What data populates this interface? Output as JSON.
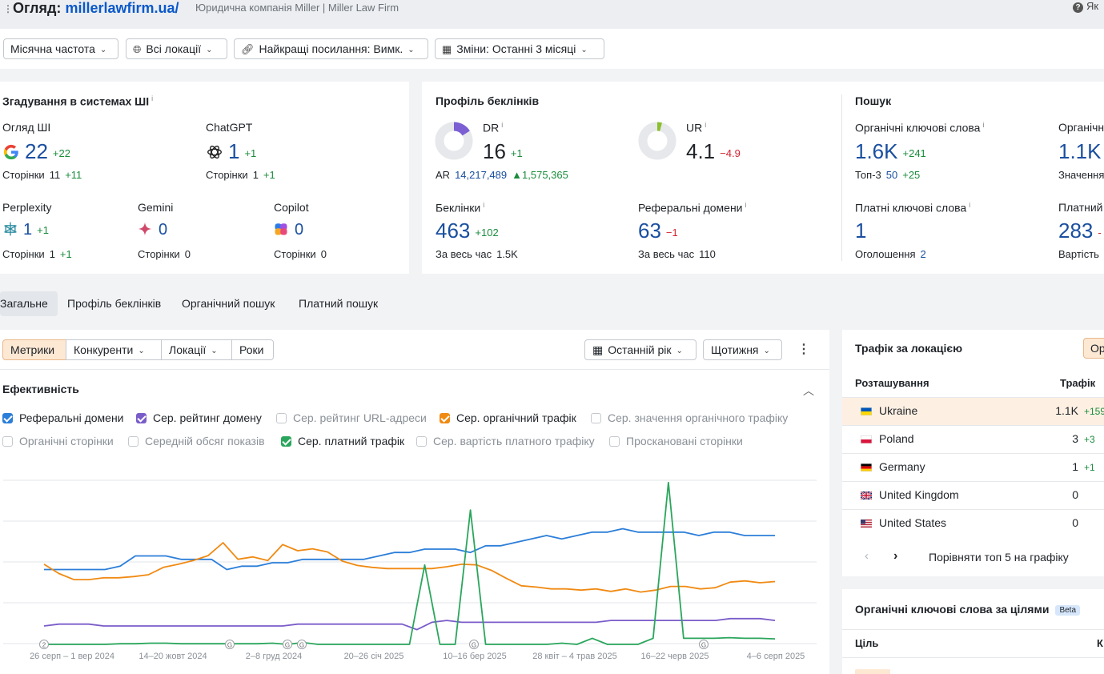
{
  "header": {
    "title_prefix": "Огляд:",
    "domain": "millerlawfirm.ua/",
    "subtitle": "Юридична компанія Miller | Miller Law Firm",
    "help_label": "Як"
  },
  "filters": {
    "frequency": "Місячна частота",
    "locations": "Всі локації",
    "best_links": "Найкращі посилання: Вимк.",
    "changes": "Зміни: Останні 3 місяці"
  },
  "ai_card": {
    "title": "Згадування в системах ШІ",
    "info": "i",
    "ai_overview": {
      "label": "Огляд ШІ",
      "value": "22",
      "delta": "+22",
      "pages_label": "Сторінки",
      "pages": "11",
      "pages_delta": "+11"
    },
    "chatgpt": {
      "label": "ChatGPT",
      "value": "1",
      "delta": "+1",
      "pages_label": "Сторінки",
      "pages": "1",
      "pages_delta": "+1"
    },
    "perplexity": {
      "label": "Perplexity",
      "value": "1",
      "delta": "+1",
      "pages_label": "Сторінки",
      "pages": "1",
      "pages_delta": "+1"
    },
    "gemini": {
      "label": "Gemini",
      "value": "0",
      "pages_label": "Сторінки",
      "pages": "0"
    },
    "copilot": {
      "label": "Copilot",
      "value": "0",
      "pages_label": "Сторінки",
      "pages": "0"
    }
  },
  "backlink_card": {
    "title": "Профіль беклінків",
    "dr": {
      "label": "DR",
      "value": "16",
      "delta": "+1",
      "fraction": 0.16
    },
    "ar": {
      "label": "AR",
      "value": "14,217,489",
      "delta": "1,575,365"
    },
    "ur": {
      "label": "UR",
      "value": "4.1",
      "delta": "−4.9",
      "fraction": 0.041
    },
    "backlinks": {
      "label": "Беклінки",
      "value": "463",
      "delta": "+102",
      "alltime_label": "За весь час",
      "alltime": "1.5K"
    },
    "ref_domains": {
      "label": "Реферальні домени",
      "value": "63",
      "delta": "−1",
      "alltime_label": "За весь час",
      "alltime": "110"
    }
  },
  "search_card": {
    "title": "Пошук",
    "organic_kw": {
      "label": "Органічні ключові слова",
      "value": "1.6K",
      "delta": "+241",
      "top3_label": "Топ-3",
      "top3": "50",
      "top3_delta": "+25"
    },
    "organic_traffic": {
      "label": "Органічн",
      "value": "1.1K",
      "delta": "+",
      "sub_label": "Значення"
    },
    "paid_kw": {
      "label": "Платні ключові слова",
      "value": "1",
      "ads_label": "Оголошення",
      "ads": "2"
    },
    "paid_traffic": {
      "label": "Платний",
      "value": "283",
      "delta": "-",
      "sub_label": "Вартість"
    }
  },
  "tabs": [
    "Загальне",
    "Профіль беклінків",
    "Органічний пошук",
    "Платний пошук"
  ],
  "chart_panel": {
    "segments": [
      "Метрики",
      "Конкуренти",
      "Локації",
      "Роки"
    ],
    "period": "Останній рік",
    "granularity": "Щотижня",
    "section_title": "Ефективність",
    "checkboxes": [
      {
        "label": "Реферальні домени",
        "checked": true,
        "color": "#2b7ed9"
      },
      {
        "label": "Сер. рейтинг домену",
        "checked": true,
        "color": "#7a5cc9"
      },
      {
        "label": "Сер. рейтинг URL-адреси",
        "checked": false
      },
      {
        "label": "Сер. органічний трафік",
        "checked": true,
        "color": "#f08a12"
      },
      {
        "label": "Сер. значення органічного трафіку",
        "checked": false
      },
      {
        "label": "Органічні сторінки",
        "checked": false
      },
      {
        "label": "Середній обсяг показів",
        "checked": false
      },
      {
        "label": "Сер. платний трафік",
        "checked": true,
        "color": "#2aa65c"
      },
      {
        "label": "Сер. вартість платного трафіку",
        "checked": false
      },
      {
        "label": "Проскановані сторінки",
        "checked": false
      }
    ]
  },
  "chart_data": {
    "type": "line",
    "x_tick_labels": [
      "26 серп – 1 вер 2024",
      "14–20 жовт 2024",
      "2–8 груд 2024",
      "20–26 січ 2025",
      "10–16 бер 2025",
      "28 квіт – 4 трав 2025",
      "16–22 черв 2025",
      "4–6 серп 2025"
    ],
    "event_markers": [
      "2",
      "G",
      "G",
      "G",
      "G",
      "G"
    ],
    "grid": true,
    "series": [
      {
        "name": "Реферальні домени",
        "color": "#2b7ed9",
        "values": [
          52,
          52,
          52,
          52,
          52,
          53,
          56,
          56,
          56,
          55,
          55,
          55,
          52,
          53,
          53,
          54,
          54,
          55,
          55,
          55,
          55,
          55,
          56,
          57,
          57,
          58,
          58,
          58,
          57,
          59,
          59,
          60,
          61,
          62,
          61,
          62,
          63,
          63,
          64,
          63,
          63,
          63,
          63,
          62,
          63,
          63,
          62,
          62,
          62
        ]
      },
      {
        "name": "Сер. рейтинг домену",
        "color": "#7a5cc9",
        "values": [
          15,
          16,
          16,
          16,
          15,
          15,
          15,
          15,
          15,
          15,
          15,
          15,
          15,
          15,
          15,
          15,
          15,
          16,
          16,
          16,
          16,
          16,
          16,
          16,
          16,
          13,
          17,
          18,
          17,
          17,
          17,
          17,
          17,
          17,
          17,
          17,
          17,
          17,
          18,
          18,
          18,
          18,
          18,
          18,
          18,
          18,
          19,
          19,
          19,
          18
        ]
      },
      {
        "name": "Сер. органічний трафік",
        "color": "#f08a12",
        "values": [
          230,
          215,
          205,
          205,
          208,
          208,
          210,
          213,
          225,
          230,
          236,
          244,
          265,
          238,
          242,
          236,
          262,
          252,
          255,
          250,
          235,
          228,
          225,
          223,
          223,
          223,
          223,
          226,
          230,
          229,
          220,
          207,
          195,
          193,
          190,
          190,
          188,
          190,
          186,
          190,
          185,
          188,
          194,
          194,
          190,
          192,
          201,
          203,
          200,
          202
        ]
      },
      {
        "name": "Сер. платний трафік",
        "color": "#2aa65c",
        "values": [
          0,
          0,
          0,
          0,
          0,
          1,
          1,
          2,
          2,
          1,
          1,
          1,
          1,
          1,
          1,
          2,
          0,
          3,
          0,
          0,
          0,
          0,
          0,
          0,
          0,
          130,
          0,
          0,
          220,
          0,
          0,
          0,
          0,
          0,
          2,
          0,
          10,
          0,
          0,
          0,
          10,
          265,
          10,
          10,
          10,
          11,
          10,
          10,
          9
        ]
      }
    ]
  },
  "location_panel": {
    "title": "Трафік за локацією",
    "tag": "Ор",
    "col_location": "Розташування",
    "col_traffic": "Трафік",
    "rows": [
      {
        "country": "Ukraine",
        "traffic": "1.1K",
        "delta": "+159"
      },
      {
        "country": "Poland",
        "traffic": "3",
        "delta": "+3"
      },
      {
        "country": "Germany",
        "traffic": "1",
        "delta": "+1"
      },
      {
        "country": "United Kingdom",
        "traffic": "0",
        "delta": ""
      },
      {
        "country": "United States",
        "traffic": "0",
        "delta": ""
      }
    ],
    "compare_label": "Порівняти топ 5 на графіку"
  },
  "kw_panel": {
    "title": "Органічні ключові слова за цілями",
    "beta": "Beta",
    "col_goal": "Ціль",
    "col_k": "К"
  }
}
